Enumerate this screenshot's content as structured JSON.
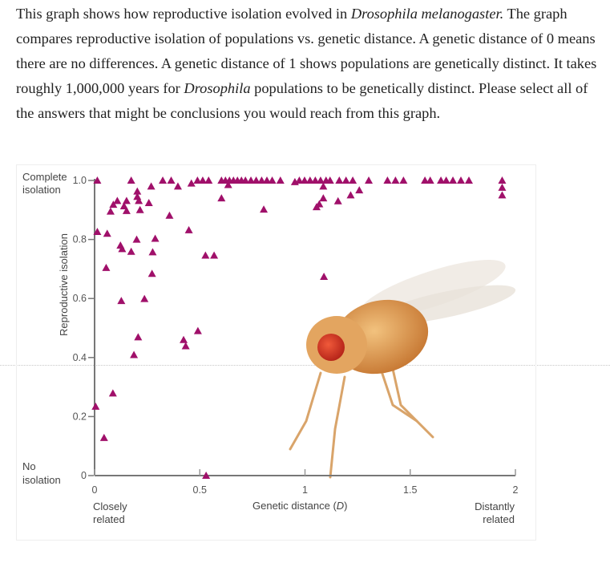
{
  "question": {
    "segments": [
      {
        "text": "This graph shows how reproductive isolation evolved in ",
        "italic": false
      },
      {
        "text": "Drosophila melanogaster.",
        "italic": true
      },
      {
        "text": " The graph compares reproductive isolation of populations vs. genetic distance.  A genetic distance of 0 means there are no differences. A genetic distance of 1 shows populations are genetically distinct.  It takes roughly 1,000,000 years for ",
        "italic": false
      },
      {
        "text": "Drosophila",
        "italic": true
      },
      {
        "text": " populations to be genetically distinct.  Please select all of the answers that might be conclusions you would reach from this graph.",
        "italic": false
      }
    ]
  },
  "chart_data": {
    "type": "scatter",
    "xlabel": "Genetic distance (D)",
    "ylabel": "Reproductive isolation",
    "xlim": [
      0,
      2
    ],
    "ylim": [
      0,
      1
    ],
    "x_ticks": [
      "0",
      "0.5",
      "1",
      "1.5",
      "2"
    ],
    "y_ticks": [
      "0",
      "0.2",
      "0.4",
      "0.6",
      "0.8",
      "1.0"
    ],
    "x_end_labels": {
      "left": "Closely related",
      "right": "Distantly related"
    },
    "y_end_labels": {
      "top": "Complete isolation",
      "bottom": "No isolation"
    },
    "marker": "triangle",
    "marker_color": "#a0106a",
    "grid": false,
    "points": [
      [
        0.013,
        1.0
      ],
      [
        0.174,
        1.0
      ],
      [
        0.269,
        0.98
      ],
      [
        0.324,
        1.0
      ],
      [
        0.364,
        1.0
      ],
      [
        0.396,
        0.98
      ],
      [
        0.46,
        0.99
      ],
      [
        0.489,
        1.0
      ],
      [
        0.514,
        1.0
      ],
      [
        0.542,
        1.0
      ],
      [
        0.603,
        1.0
      ],
      [
        0.622,
        1.0
      ],
      [
        0.641,
        1.0
      ],
      [
        0.66,
        1.0
      ],
      [
        0.679,
        1.0
      ],
      [
        0.698,
        1.0
      ],
      [
        0.717,
        1.0
      ],
      [
        0.743,
        1.0
      ],
      [
        0.768,
        1.0
      ],
      [
        0.794,
        1.0
      ],
      [
        0.819,
        1.0
      ],
      [
        0.844,
        1.0
      ],
      [
        0.883,
        1.0
      ],
      [
        0.635,
        0.985
      ],
      [
        0.952,
        0.995
      ],
      [
        0.973,
        1.0
      ],
      [
        0.998,
        1.0
      ],
      [
        1.024,
        1.0
      ],
      [
        1.049,
        1.0
      ],
      [
        1.074,
        1.0
      ],
      [
        1.1,
        1.0
      ],
      [
        1.119,
        1.0
      ],
      [
        1.163,
        1.0
      ],
      [
        1.195,
        1.0
      ],
      [
        1.227,
        1.0
      ],
      [
        1.303,
        1.0
      ],
      [
        1.392,
        1.0
      ],
      [
        1.43,
        1.0
      ],
      [
        1.468,
        1.0
      ],
      [
        1.57,
        1.0
      ],
      [
        1.595,
        1.0
      ],
      [
        1.646,
        1.0
      ],
      [
        1.671,
        1.0
      ],
      [
        1.703,
        1.0
      ],
      [
        1.741,
        1.0
      ],
      [
        1.779,
        1.0
      ],
      [
        1.937,
        1.0
      ],
      [
        1.937,
        0.976
      ],
      [
        1.937,
        0.95
      ],
      [
        1.087,
        0.98
      ],
      [
        1.087,
        0.94
      ],
      [
        1.068,
        0.92
      ],
      [
        1.055,
        0.91
      ],
      [
        1.157,
        0.93
      ],
      [
        1.217,
        0.95
      ],
      [
        1.258,
        0.967
      ],
      [
        1.09,
        0.674
      ],
      [
        0.203,
        0.963
      ],
      [
        0.203,
        0.945
      ],
      [
        0.108,
        0.931
      ],
      [
        0.152,
        0.931
      ],
      [
        0.21,
        0.931
      ],
      [
        0.089,
        0.918
      ],
      [
        0.258,
        0.924
      ],
      [
        0.14,
        0.913
      ],
      [
        0.076,
        0.895
      ],
      [
        0.152,
        0.897
      ],
      [
        0.216,
        0.9
      ],
      [
        0.356,
        0.881
      ],
      [
        0.603,
        0.94
      ],
      [
        0.804,
        0.902
      ],
      [
        0.013,
        0.826
      ],
      [
        0.06,
        0.82
      ],
      [
        0.123,
        0.78
      ],
      [
        0.131,
        0.768
      ],
      [
        0.2,
        0.8
      ],
      [
        0.174,
        0.759
      ],
      [
        0.288,
        0.803
      ],
      [
        0.276,
        0.757
      ],
      [
        0.448,
        0.832
      ],
      [
        0.527,
        0.746
      ],
      [
        0.568,
        0.746
      ],
      [
        0.055,
        0.704
      ],
      [
        0.273,
        0.684
      ],
      [
        0.127,
        0.592
      ],
      [
        0.237,
        0.599
      ],
      [
        0.207,
        0.469
      ],
      [
        0.187,
        0.409
      ],
      [
        0.423,
        0.46
      ],
      [
        0.433,
        0.439
      ],
      [
        0.491,
        0.49
      ],
      [
        0.087,
        0.279
      ],
      [
        0.005,
        0.234
      ],
      [
        0.045,
        0.128
      ],
      [
        0.53,
        0.0
      ]
    ]
  }
}
